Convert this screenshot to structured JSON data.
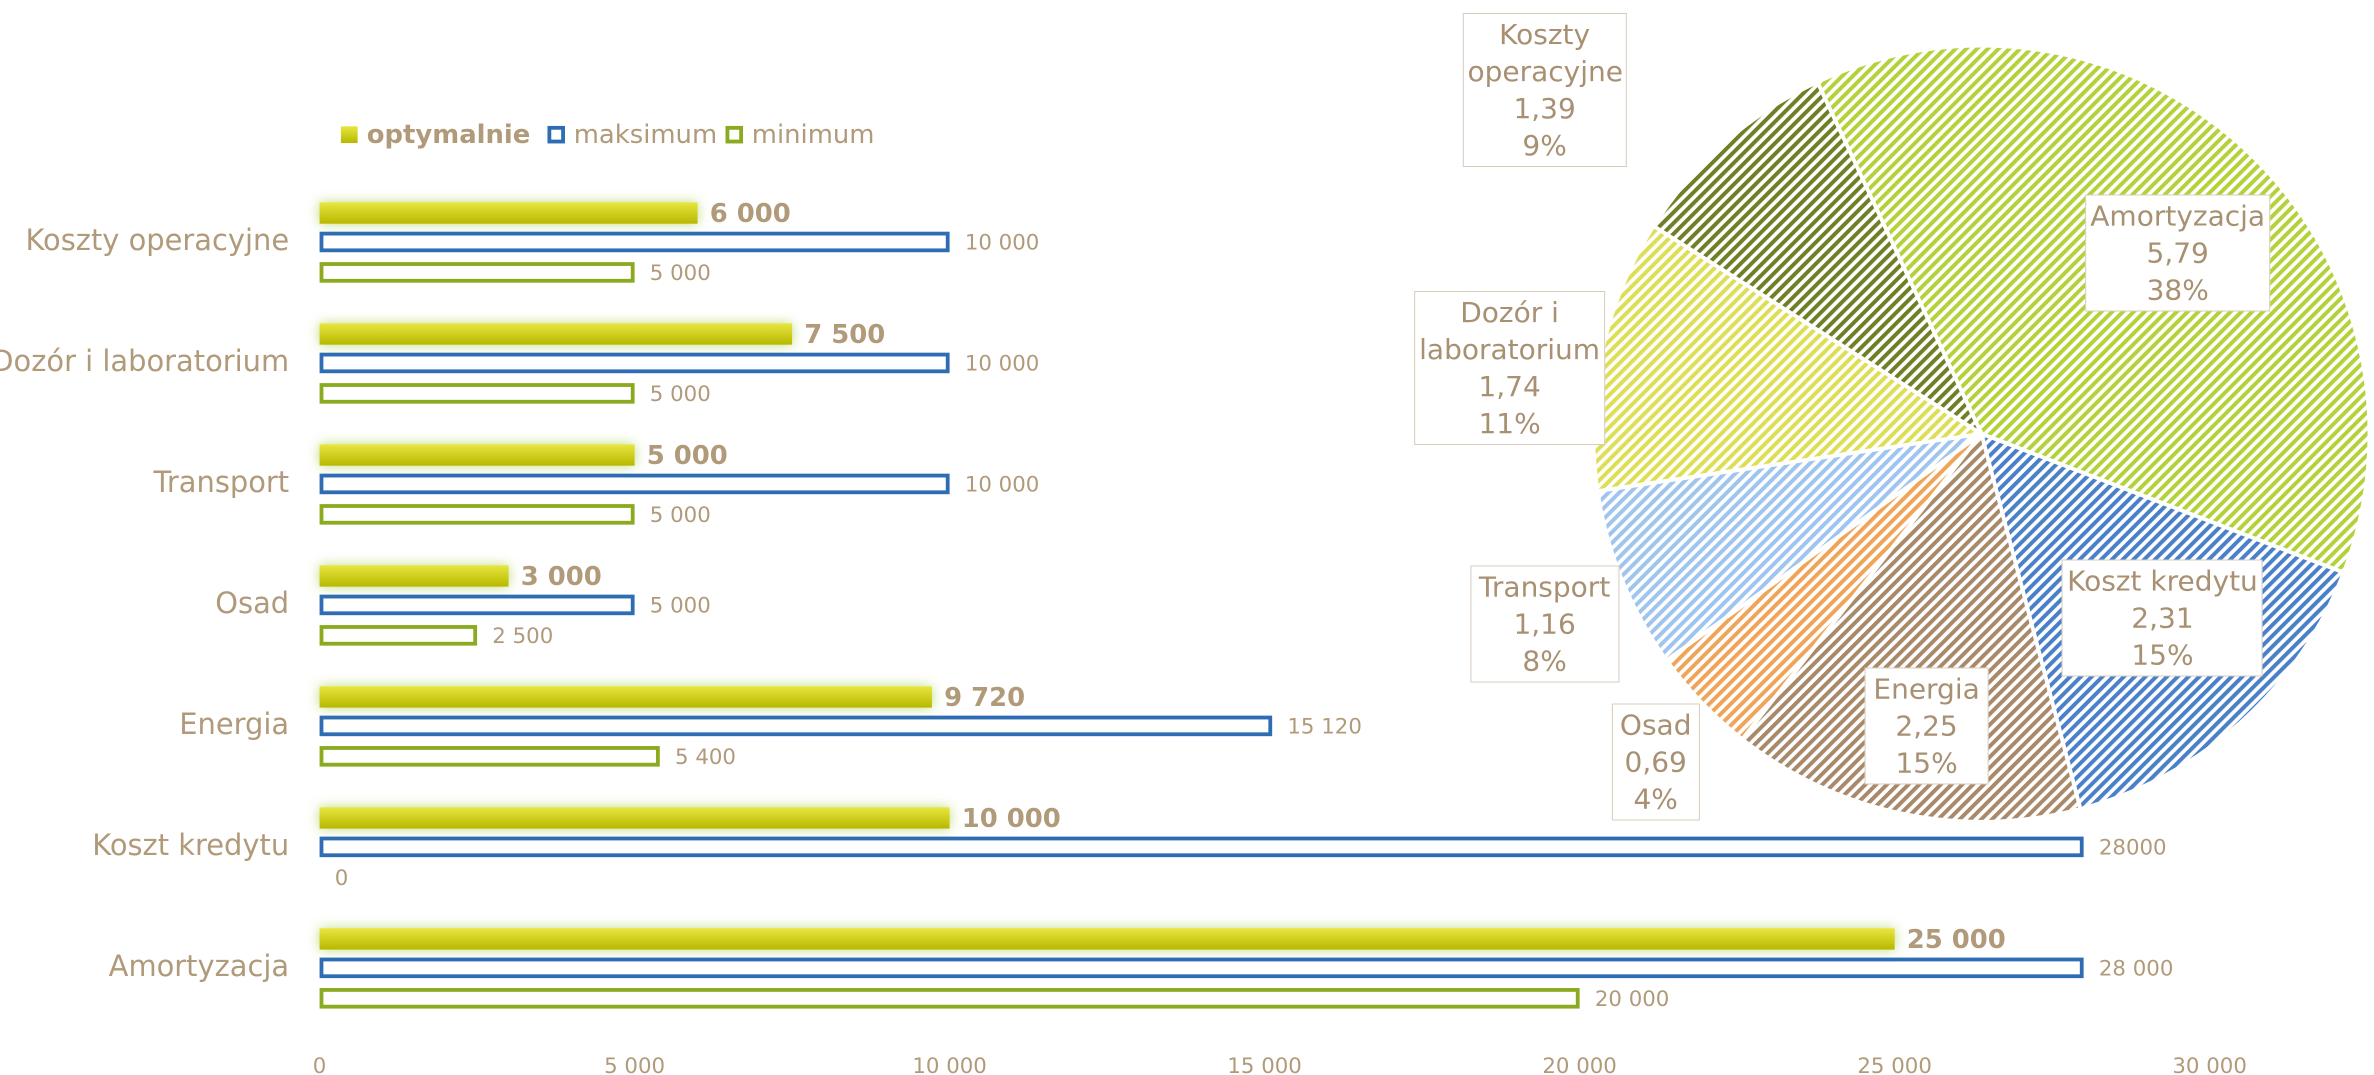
{
  "chart_data": [
    {
      "type": "bar",
      "orientation": "horizontal",
      "categories": [
        "Koszty operacyjne",
        "Dozór i laboratorium",
        "Transport",
        "Osad",
        "Energia",
        "Koszt kredytu",
        "Amortyzacja"
      ],
      "series": [
        {
          "name": "optymalnie",
          "color": "#d0d010",
          "values": [
            6000,
            7500,
            5000,
            3000,
            9720,
            10000,
            25000
          ],
          "value_labels": [
            "6 000",
            "7 500",
            "5 000",
            "3 000",
            "9 720",
            "10 000",
            "25 000"
          ]
        },
        {
          "name": "maksimum",
          "color": "#2e6db4",
          "values": [
            10000,
            10000,
            10000,
            5000,
            15120,
            28000,
            28000
          ],
          "value_labels": [
            "10 000",
            "10 000",
            "10 000",
            "5 000",
            "15 120",
            "28000",
            "28 000"
          ]
        },
        {
          "name": "minimum",
          "color": "#8aaa1f",
          "values": [
            5000,
            5000,
            5000,
            2500,
            5400,
            0,
            20000
          ],
          "value_labels": [
            "5 000",
            "5 000",
            "5 000",
            "2 500",
            "5 400",
            "0",
            "20 000"
          ]
        }
      ],
      "xlim": [
        0,
        30000
      ],
      "xticks": [
        0,
        {
          "value": 5000,
          "label": "5 000"
        },
        {
          "value": 10000,
          "label": "10 000"
        },
        {
          "value": 15000,
          "label": "15 000"
        },
        {
          "value": 20000,
          "label": "20 000"
        },
        {
          "value": 25000,
          "label": "25 000"
        },
        {
          "value": 30000,
          "label": "30 000"
        }
      ],
      "legend": "top"
    },
    {
      "type": "pie",
      "categories": [
        "Amortyzacja",
        "Koszt kredytu",
        "Energia",
        "Osad",
        "Transport",
        "Dozór i laboratorium",
        "Koszty operacyjne"
      ],
      "values": [
        5.79,
        2.31,
        2.25,
        0.69,
        1.16,
        1.74,
        1.39
      ],
      "value_labels": [
        "5,79",
        "2,31",
        "2,25",
        "0,69",
        "1,16",
        "1,74",
        "1,39"
      ],
      "percent_labels": [
        "38%",
        "15%",
        "15%",
        "4%",
        "8%",
        "11%",
        "9%"
      ],
      "colors": [
        "#b3d23a",
        "#4a80c8",
        "#a8896a",
        "#eea55a",
        "#9fc4ee",
        "#dede55",
        "#6e7f26"
      ]
    }
  ]
}
